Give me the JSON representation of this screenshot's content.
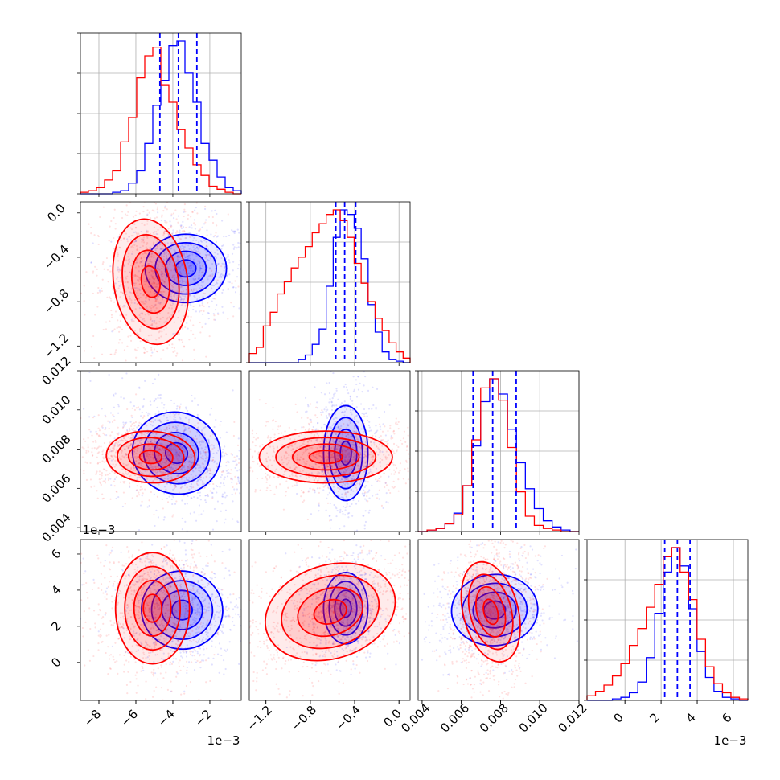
{
  "chart_data": {
    "type": "corner",
    "colors": {
      "blue": "#0000ff",
      "red": "#ff0000",
      "grid": "#b0b0b0"
    },
    "series": [
      {
        "color": "blue"
      },
      {
        "color": "red"
      }
    ],
    "params": [
      {
        "range": [
          -0.009,
          -0.0003
        ],
        "ticks": [
          -8,
          -6,
          -4,
          -2
        ],
        "tick_labels": [
          "−8",
          "−6",
          "−4",
          "−2"
        ],
        "offset_label": "1e−3",
        "center": -0.0042,
        "sd": {
          "blue": 0.0009,
          "red": 0.0011
        }
      },
      {
        "range": [
          -1.35,
          0.1
        ],
        "ticks": [
          -1.2,
          -0.8,
          -0.4,
          0.0
        ],
        "tick_labels": [
          "−1.2",
          "−0.8",
          "−0.4",
          "0.0"
        ],
        "offset_label": "",
        "center": -0.5,
        "sd": {
          "blue": 0.12,
          "red": 0.3
        }
      },
      {
        "range": [
          0.0038,
          0.012
        ],
        "ticks": [
          0.004,
          0.006,
          0.008,
          0.01,
          0.012
        ],
        "tick_labels": [
          "0.004",
          "0.006",
          "0.008",
          "0.010",
          "0.012"
        ],
        "offset_label": "",
        "center": 0.0077,
        "sd": {
          "blue": 0.0008,
          "red": 0.0007
        }
      },
      {
        "range": [
          -0.0021,
          0.0068
        ],
        "ticks": [
          0,
          2,
          4,
          6
        ],
        "tick_labels": [
          "0",
          "2",
          "4",
          "6"
        ],
        "offset_label": "1e−3",
        "center": 0.003,
        "sd": {
          "blue": 0.0009,
          "red": 0.0012
        }
      }
    ],
    "quantiles": [
      [
        -0.0047,
        -0.0037,
        -0.0027
      ],
      [
        -0.57,
        -0.49,
        -0.39
      ],
      [
        0.0066,
        0.0076,
        0.0088
      ],
      [
        0.0022,
        0.0029,
        0.0036
      ]
    ],
    "histograms": [
      {
        "blue": [
          0,
          0,
          0,
          0,
          0.01,
          0.02,
          0.07,
          0.15,
          0.33,
          0.58,
          0.74,
          0.97,
          1.0,
          0.79,
          0.6,
          0.33,
          0.22,
          0.11,
          0.04,
          0.02
        ],
        "red": [
          0.01,
          0.02,
          0.04,
          0.09,
          0.15,
          0.34,
          0.5,
          0.76,
          0.9,
          0.96,
          0.71,
          0.6,
          0.42,
          0.3,
          0.19,
          0.12,
          0.05,
          0.03,
          0.01,
          0
        ]
      },
      {
        "blue": [
          0,
          0,
          0,
          0,
          0,
          0,
          0,
          0.02,
          0.05,
          0.12,
          0.22,
          0.5,
          0.82,
          1.0,
          0.97,
          0.88,
          0.68,
          0.38,
          0.2,
          0.07,
          0.02,
          0.01,
          0
        ],
        "red": [
          0.06,
          0.1,
          0.24,
          0.33,
          0.45,
          0.53,
          0.62,
          0.69,
          0.76,
          0.85,
          0.91,
          0.97,
          1.0,
          0.93,
          0.82,
          0.65,
          0.52,
          0.4,
          0.29,
          0.21,
          0.13,
          0.07,
          0.03
        ]
      },
      {
        "blue": [
          0,
          0.01,
          0.02,
          0.05,
          0.12,
          0.3,
          0.56,
          0.85,
          1.0,
          0.9,
          0.67,
          0.45,
          0.28,
          0.15,
          0.07,
          0.03,
          0.01,
          0
        ],
        "red": [
          0,
          0.01,
          0.02,
          0.05,
          0.11,
          0.3,
          0.6,
          0.94,
          1.0,
          0.86,
          0.55,
          0.26,
          0.1,
          0.04,
          0.02,
          0.01,
          0,
          0
        ]
      },
      {
        "blue": [
          0,
          0,
          0,
          0.01,
          0.02,
          0.05,
          0.12,
          0.28,
          0.57,
          0.84,
          1.0,
          0.88,
          0.6,
          0.32,
          0.15,
          0.06,
          0.02,
          0.01,
          0
        ],
        "red": [
          0.03,
          0.06,
          0.1,
          0.16,
          0.24,
          0.36,
          0.47,
          0.61,
          0.76,
          0.94,
          1.0,
          0.84,
          0.66,
          0.4,
          0.22,
          0.11,
          0.05,
          0.02,
          0.01
        ]
      }
    ],
    "pairs": [
      {
        "row": 1,
        "col": 0,
        "blue": {
          "center": [
            -0.0033,
            -0.5
          ],
          "sd": [
            0.0011,
            0.14
          ],
          "rho": 0.0,
          "n": 700
        },
        "red": {
          "center": [
            -0.0052,
            -0.62
          ],
          "sd": [
            0.001,
            0.26
          ],
          "rho": 0.1,
          "n": 900
        }
      },
      {
        "row": 2,
        "col": 0,
        "blue": {
          "center": [
            -0.0038,
            0.0078
          ],
          "sd": [
            0.0012,
            0.001
          ],
          "rho": -0.35,
          "n": 700
        },
        "red": {
          "center": [
            -0.0052,
            0.0076
          ],
          "sd": [
            0.0012,
            0.0006
          ],
          "rho": -0.1,
          "n": 900
        }
      },
      {
        "row": 2,
        "col": 1,
        "blue": {
          "center": [
            -0.48,
            0.0078
          ],
          "sd": [
            0.1,
            0.0011
          ],
          "rho": 0.0,
          "n": 700
        },
        "red": {
          "center": [
            -0.66,
            0.0076
          ],
          "sd": [
            0.3,
            0.0006
          ],
          "rho": 0.0,
          "n": 900
        }
      },
      {
        "row": 3,
        "col": 0,
        "blue": {
          "center": [
            -0.0035,
            0.0029
          ],
          "sd": [
            0.0011,
            0.001
          ],
          "rho": -0.2,
          "n": 700
        },
        "red": {
          "center": [
            -0.0051,
            0.003
          ],
          "sd": [
            0.001,
            0.0014
          ],
          "rho": 0.0,
          "n": 900
        }
      },
      {
        "row": 3,
        "col": 1,
        "blue": {
          "center": [
            -0.48,
            0.003
          ],
          "sd": [
            0.1,
            0.0009
          ],
          "rho": 0.0,
          "n": 700
        },
        "red": {
          "center": [
            -0.62,
            0.0028
          ],
          "sd": [
            0.3,
            0.0013
          ],
          "rho": 0.45,
          "n": 900
        }
      },
      {
        "row": 3,
        "col": 2,
        "blue": {
          "center": [
            0.0077,
            0.0029
          ],
          "sd": [
            0.0011,
            0.0009
          ],
          "rho": 0.1,
          "n": 700
        },
        "red": {
          "center": [
            0.0075,
            0.0028
          ],
          "sd": [
            0.0007,
            0.0013
          ],
          "rho": 0.15,
          "n": 900
        }
      }
    ]
  }
}
